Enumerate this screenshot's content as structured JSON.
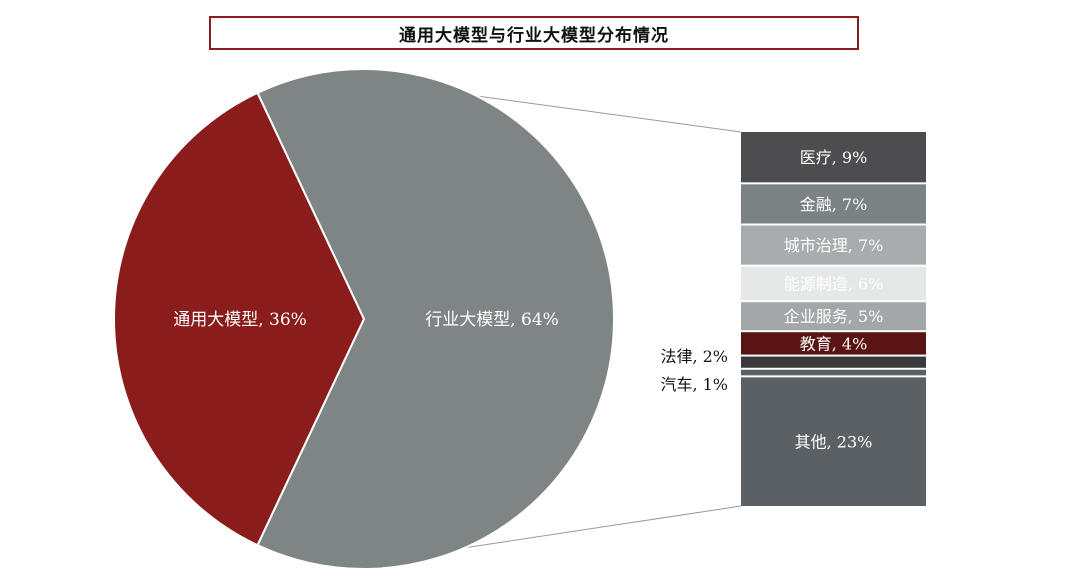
{
  "chart_data": {
    "type": "pie",
    "title": "通用大模型与行业大模型分布情况",
    "slices": [
      {
        "label": "通用大模型",
        "value": 36,
        "color": "#8b1c1c",
        "text": "通用大模型, 36%"
      },
      {
        "label": "行业大模型",
        "value": 64,
        "color": "#7f8585",
        "text": "行业大模型, 64%"
      }
    ],
    "breakdown": {
      "of": "行业大模型",
      "type": "stacked-bar",
      "items": [
        {
          "label": "医疗",
          "value": 9,
          "color": "#4d4d4f",
          "text_color": "#ffffff",
          "text": "医疗, 9%"
        },
        {
          "label": "金融",
          "value": 7,
          "color": "#7a8283",
          "text_color": "#ffffff",
          "text": "金融, 7%"
        },
        {
          "label": "城市治理",
          "value": 7,
          "color": "#a8acae",
          "text_color": "#ffffff",
          "text": "城市治理, 7%"
        },
        {
          "label": "能源制造",
          "value": 6,
          "color": "#e6e8e8",
          "text_color": "#ffffff",
          "text": "能源制造, 6%"
        },
        {
          "label": "企业服务",
          "value": 5,
          "color": "#a3a7a9",
          "text_color": "#ffffff",
          "text": "企业服务, 5%"
        },
        {
          "label": "教育",
          "value": 4,
          "color": "#5a1414",
          "text_color": "#ffffff",
          "text": "教育, 4%"
        },
        {
          "label": "法律",
          "value": 2,
          "color": "#3a3a3c",
          "text_color": "#111111",
          "text": "法律, 2%",
          "label_outside": true
        },
        {
          "label": "汽车",
          "value": 1,
          "color": "#5a6063",
          "text_color": "#111111",
          "text": "汽车, 1%",
          "label_outside": true
        },
        {
          "label": "其他",
          "value": 23,
          "color": "#5a6063",
          "text_color": "#ffffff",
          "text": "其他, 23%"
        }
      ]
    },
    "legend": "none",
    "grid": false
  }
}
